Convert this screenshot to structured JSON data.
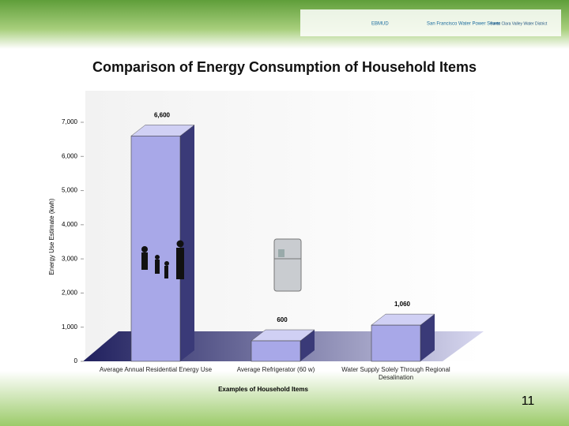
{
  "header": {
    "logos": [
      "San Francisco Water Power Sewer",
      "Santa Clara Valley Water District",
      "EBMUD"
    ]
  },
  "chart_data": {
    "type": "bar3d",
    "title": "Comparison of Energy Consumption of Household Items",
    "x_label": "Examples of Household Items",
    "y_label": "Energy Use Estimate (kwh)",
    "categories": [
      "Average Annual Residential Energy Use",
      "Average Refrigerator (60 w)",
      "Water Supply Solely Through Regional Desalination"
    ],
    "values": [
      6600,
      600,
      1060
    ],
    "value_labels": [
      "6,600",
      "600",
      "1,060"
    ],
    "color": "#a8a8e8",
    "ylim": [
      0,
      7000
    ],
    "yticks": [
      0,
      {
        "value": 1000,
        "label": "1,000"
      },
      {
        "value": 2000,
        "label": "2,000"
      },
      {
        "value": 3000,
        "label": "3,000"
      },
      {
        "value": 4000,
        "label": "4,000"
      },
      {
        "value": 5000,
        "label": "5,000"
      },
      {
        "value": 6000,
        "label": "6,000"
      },
      {
        "value": 7000,
        "label": "7,000"
      }
    ]
  },
  "page_number": "11"
}
